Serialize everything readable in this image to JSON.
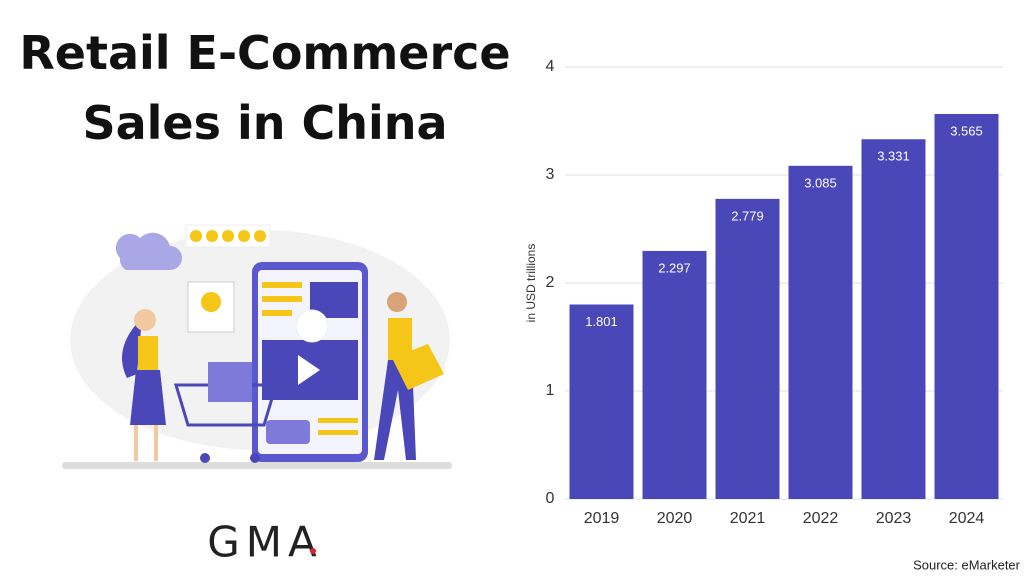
{
  "chart_data": {
    "type": "bar",
    "title": "Retail E-Commerce Sales in China",
    "categories": [
      "2019",
      "2020",
      "2021",
      "2022",
      "2023",
      "2024"
    ],
    "values": [
      1.801,
      2.297,
      2.779,
      3.085,
      3.331,
      3.565
    ],
    "color": "#4a47b8",
    "ylabel": "in USD trillions",
    "ylim": [
      0,
      4
    ],
    "yticks": [
      0,
      1,
      2,
      3,
      4
    ],
    "grid": true,
    "source": "Source: eMarketer",
    "logo": "GMA"
  }
}
